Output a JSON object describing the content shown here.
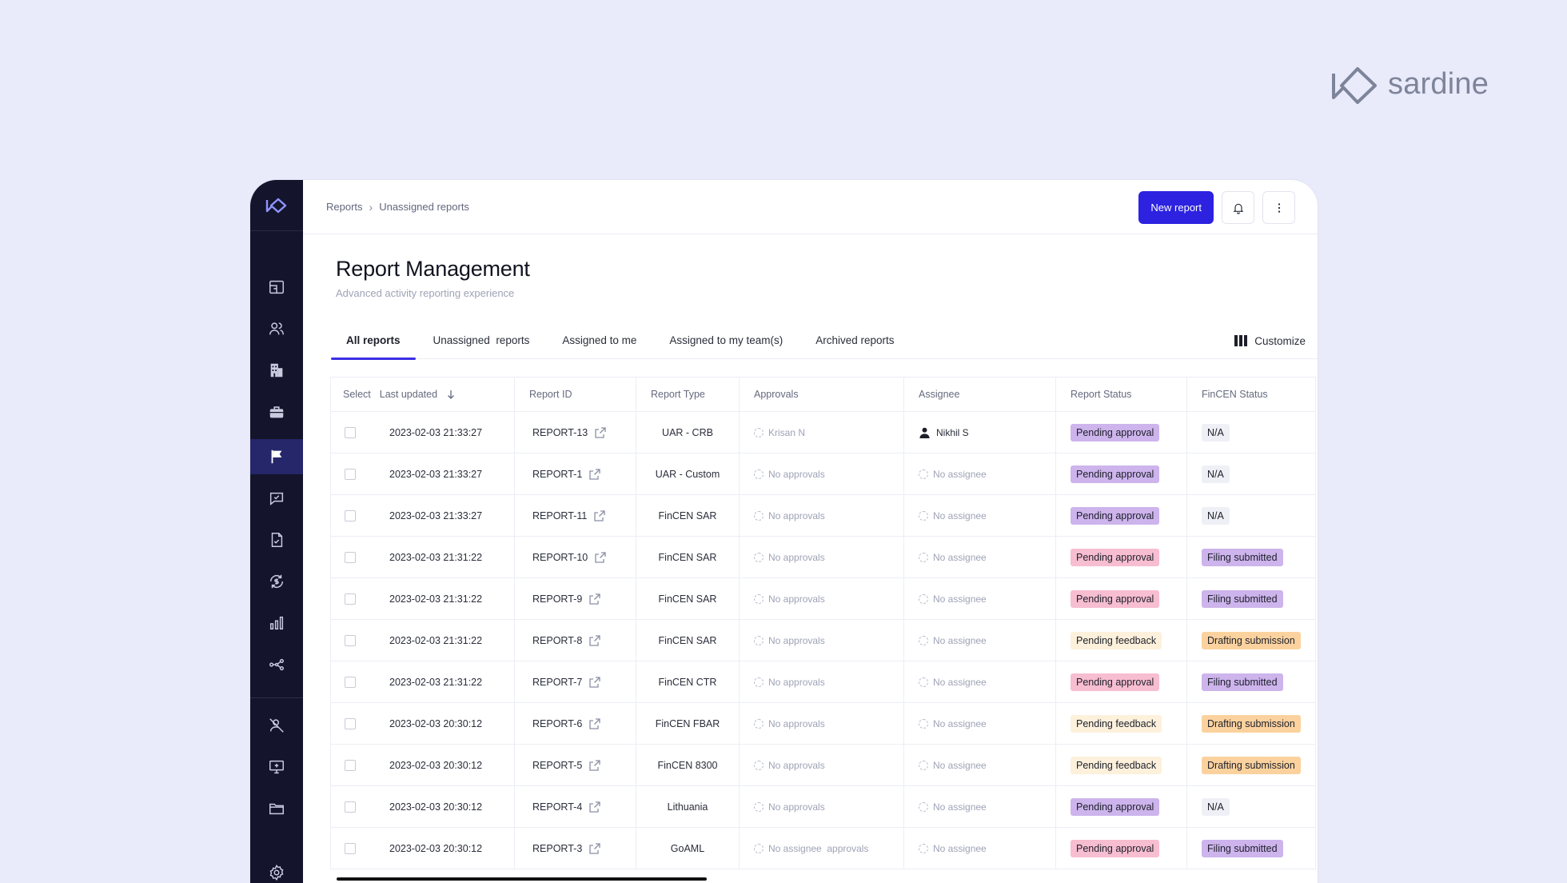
{
  "brand": {
    "name": "sardine"
  },
  "breadcrumb": {
    "root": "Reports",
    "current": "Unassigned reports",
    "sep": "›"
  },
  "actions": {
    "new_report": "New report"
  },
  "page": {
    "title": "Report Management",
    "subtitle": "Advanced activity reporting experience"
  },
  "tabs": [
    {
      "label": "All reports",
      "active": true
    },
    {
      "label": "Unassigned  reports",
      "active": false
    },
    {
      "label": "Assigned to me",
      "active": false
    },
    {
      "label": "Assigned to my team(s)",
      "active": false
    },
    {
      "label": "Archived reports",
      "active": false
    }
  ],
  "customize": "Customize",
  "columns": {
    "select": "Select",
    "updated": "Last updated",
    "id": "Report ID",
    "type": "Report Type",
    "approvals": "Approvals",
    "assignee": "Assignee",
    "report_status": "Report Status",
    "fincen_status": "FinCEN Status"
  },
  "rows": [
    {
      "updated": "2023-02-03 21:33:27",
      "id": "REPORT-13",
      "type": "UAR - CRB",
      "approvals": "Krisan N",
      "assignee": "Nikhil S",
      "report_status": "Pending approval",
      "rs_color": "purple",
      "fincen_status": "N/A",
      "fs_color": "gray"
    },
    {
      "updated": "2023-02-03 21:33:27",
      "id": "REPORT-1",
      "type": "UAR - Custom",
      "approvals": "No approvals",
      "assignee": "No assignee",
      "report_status": "Pending approval",
      "rs_color": "purple",
      "fincen_status": "N/A",
      "fs_color": "gray"
    },
    {
      "updated": "2023-02-03 21:33:27",
      "id": "REPORT-11",
      "type": "FinCEN SAR",
      "approvals": "No approvals",
      "assignee": "No assignee",
      "report_status": "Pending approval",
      "rs_color": "purple",
      "fincen_status": "N/A",
      "fs_color": "gray"
    },
    {
      "updated": "2023-02-03 21:31:22",
      "id": "REPORT-10",
      "type": "FinCEN SAR",
      "approvals": "No approvals",
      "assignee": "No assignee",
      "report_status": "Pending approval",
      "rs_color": "pink",
      "fincen_status": "Filing submitted",
      "fs_color": "purple"
    },
    {
      "updated": "2023-02-03 21:31:22",
      "id": "REPORT-9",
      "type": "FinCEN SAR",
      "approvals": "No approvals",
      "assignee": "No assignee",
      "report_status": "Pending approval",
      "rs_color": "pink",
      "fincen_status": "Filing submitted",
      "fs_color": "purple"
    },
    {
      "updated": "2023-02-03 21:31:22",
      "id": "REPORT-8",
      "type": "FinCEN SAR",
      "approvals": "No approvals",
      "assignee": "No assignee",
      "report_status": "Pending feedback",
      "rs_color": "cream",
      "fincen_status": "Drafting submission",
      "fs_color": "orange"
    },
    {
      "updated": "2023-02-03 21:31:22",
      "id": "REPORT-7",
      "type": "FinCEN CTR",
      "approvals": "No approvals",
      "assignee": "No assignee",
      "report_status": "Pending approval",
      "rs_color": "pink",
      "fincen_status": "Filing submitted",
      "fs_color": "purple"
    },
    {
      "updated": "2023-02-03 20:30:12",
      "id": "REPORT-6",
      "type": "FinCEN FBAR",
      "approvals": "No approvals",
      "assignee": "No assignee",
      "report_status": "Pending feedback",
      "rs_color": "cream",
      "fincen_status": "Drafting submission",
      "fs_color": "orange"
    },
    {
      "updated": "2023-02-03 20:30:12",
      "id": "REPORT-5",
      "type": "FinCEN 8300",
      "approvals": "No approvals",
      "assignee": "No assignee",
      "report_status": "Pending feedback",
      "rs_color": "cream",
      "fincen_status": "Drafting submission",
      "fs_color": "orange"
    },
    {
      "updated": "2023-02-03 20:30:12",
      "id": "REPORT-4",
      "type": "Lithuania",
      "approvals": "No approvals",
      "assignee": "No assignee",
      "report_status": "Pending approval",
      "rs_color": "purple",
      "fincen_status": "N/A",
      "fs_color": "gray"
    },
    {
      "updated": "2023-02-03 20:30:12",
      "id": "REPORT-3",
      "type": "GoAML",
      "approvals": "No assignee  approvals",
      "assignee": "No assignee",
      "report_status": "Pending approval",
      "rs_color": "pink",
      "fincen_status": "Filing submitted",
      "fs_color": "purple"
    }
  ],
  "sidebar": {
    "items": [
      {
        "icon": "dashboard-icon"
      },
      {
        "icon": "users-icon"
      },
      {
        "icon": "building-icon"
      },
      {
        "icon": "briefcase-icon"
      },
      {
        "icon": "flag-icon",
        "active": true
      },
      {
        "icon": "chat-check-icon"
      },
      {
        "icon": "file-check-icon"
      },
      {
        "icon": "refresh-dollar-icon"
      },
      {
        "icon": "bar-chart-icon"
      },
      {
        "icon": "network-icon"
      },
      {
        "icon": "user-off-icon"
      },
      {
        "icon": "monitor-icon"
      },
      {
        "icon": "folder-icon"
      },
      {
        "icon": "settings-icon"
      }
    ]
  },
  "colors": {
    "accent": "#2c22e0",
    "rail": "#14142c",
    "page_bg": "#e9ebfb"
  }
}
